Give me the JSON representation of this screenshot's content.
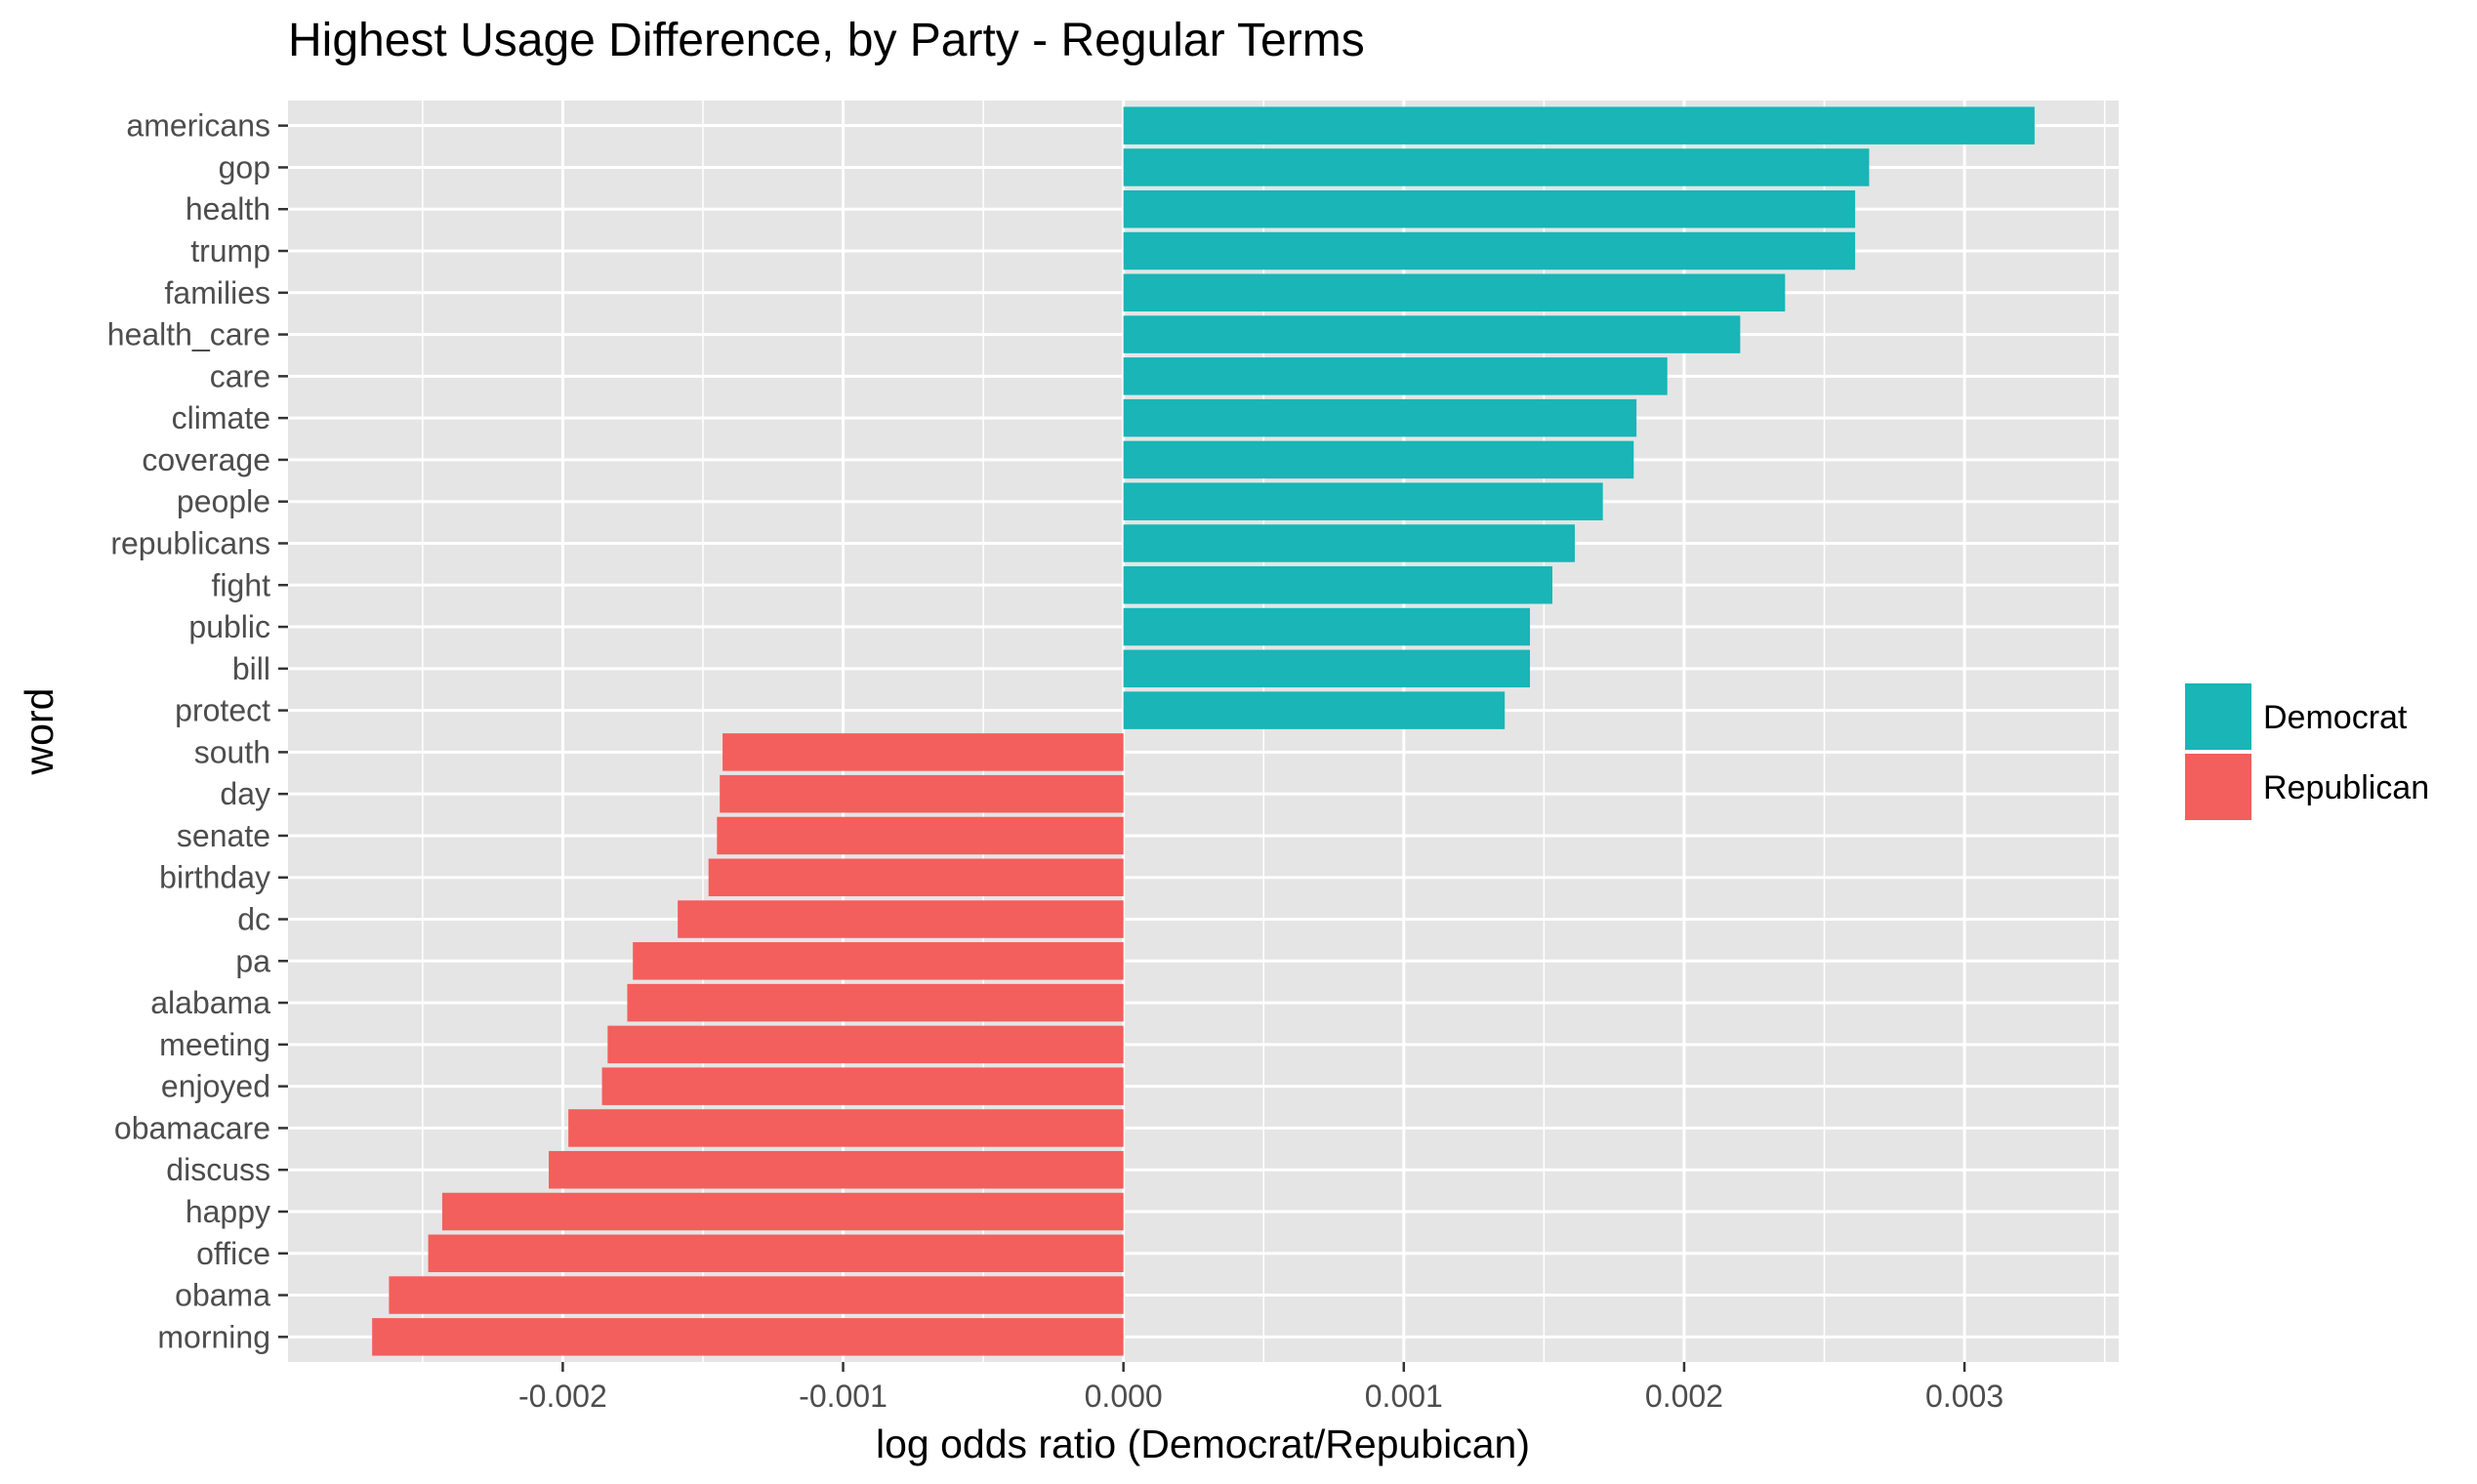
{
  "chart_data": {
    "type": "bar",
    "orientation": "horizontal",
    "title": "Highest Usage Difference, by Party - Regular Terms",
    "xlabel": "log odds ratio (Democrat/Repubican)",
    "ylabel": "word",
    "xlim": [
      -0.00298,
      0.00355
    ],
    "xticks": [
      -0.002,
      -0.001,
      0.0,
      0.001,
      0.002,
      0.003
    ],
    "xtick_labels": [
      "-0.002",
      "-0.001",
      "0.000",
      "0.001",
      "0.002",
      "0.003"
    ],
    "grid": true,
    "legend": {
      "placement": "right",
      "entries": [
        {
          "name": "Democrat",
          "color": "#19B5B7"
        },
        {
          "name": "Republican",
          "color": "#F25F5C"
        }
      ]
    },
    "categories": [
      "americans",
      "gop",
      "health",
      "trump",
      "families",
      "health_care",
      "care",
      "climate",
      "coverage",
      "people",
      "republicans",
      "fight",
      "public",
      "bill",
      "protect",
      "south",
      "day",
      "senate",
      "birthday",
      "dc",
      "pa",
      "alabama",
      "meeting",
      "enjoyed",
      "obamacare",
      "discuss",
      "happy",
      "office",
      "obama",
      "morning"
    ],
    "values": [
      0.00325,
      0.00266,
      0.00261,
      0.00261,
      0.00236,
      0.0022,
      0.00194,
      0.00183,
      0.00182,
      0.00171,
      0.00161,
      0.00153,
      0.00145,
      0.00145,
      0.00136,
      -0.00143,
      -0.00144,
      -0.00145,
      -0.00148,
      -0.00159,
      -0.00175,
      -0.00177,
      -0.00184,
      -0.00186,
      -0.00198,
      -0.00205,
      -0.00243,
      -0.00248,
      -0.00262,
      -0.00268
    ],
    "party": [
      "Democrat",
      "Democrat",
      "Democrat",
      "Democrat",
      "Democrat",
      "Democrat",
      "Democrat",
      "Democrat",
      "Democrat",
      "Democrat",
      "Democrat",
      "Democrat",
      "Democrat",
      "Democrat",
      "Democrat",
      "Republican",
      "Republican",
      "Republican",
      "Republican",
      "Republican",
      "Republican",
      "Republican",
      "Republican",
      "Republican",
      "Republican",
      "Republican",
      "Republican",
      "Republican",
      "Republican",
      "Republican"
    ],
    "colors": {
      "panel_background": "#E5E5E5",
      "gridline": "#FFFFFF",
      "text": "#000000",
      "tick_text": "#4D4D4D"
    }
  }
}
